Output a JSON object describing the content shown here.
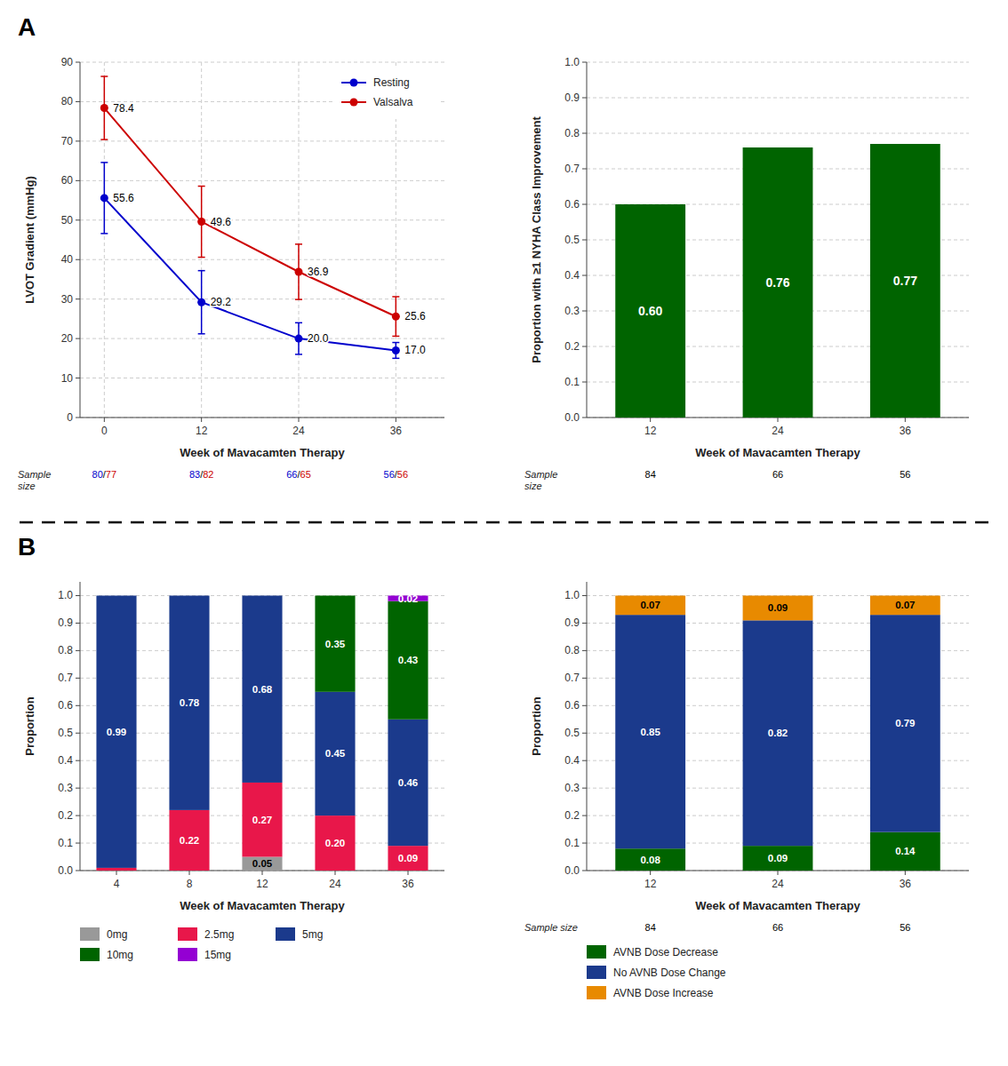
{
  "chart_data": [
    {
      "type": "line",
      "panel_label": "A",
      "xlabel": "Week of Mavacamten Therapy",
      "ylabel": "LVOT Gradient (mmHg)",
      "x": [
        0,
        12,
        24,
        36
      ],
      "xlim": [
        -3,
        42
      ],
      "xticks": [
        0,
        12,
        24,
        36
      ],
      "ylim": [
        0,
        90
      ],
      "yticks": [
        0,
        10,
        20,
        30,
        40,
        50,
        60,
        70,
        80,
        90
      ],
      "grid": true,
      "legend": "upper right",
      "data_labels": true,
      "marker": "circle",
      "sample_size_label": "Sample\nsize",
      "sample_size_separator": "/",
      "series": [
        {
          "name": "Resting",
          "color": "#0000CC",
          "values": [
            55.6,
            29.2,
            20.0,
            17.0
          ],
          "value_labels": [
            "55.6",
            "29.2",
            "20.0",
            "17.0"
          ],
          "error_low": [
            9.0,
            8.0,
            4.0,
            2.0
          ],
          "error_high": [
            9.0,
            8.0,
            4.0,
            2.0
          ],
          "sample_sizes": [
            80,
            83,
            66,
            56
          ]
        },
        {
          "name": "Valsalva",
          "color": "#CC0000",
          "values": [
            78.4,
            49.6,
            36.9,
            25.6
          ],
          "value_labels": [
            "78.4",
            "49.6",
            "36.9",
            "25.6"
          ],
          "error_low": [
            8.0,
            9.0,
            7.0,
            5.0
          ],
          "error_high": [
            8.0,
            9.0,
            7.0,
            5.0
          ],
          "sample_sizes": [
            77,
            82,
            65,
            56
          ]
        }
      ]
    },
    {
      "type": "bar",
      "xlabel": "Week of Mavacamten Therapy",
      "ylabel": "Proportion with ≥1 NYHA Class Improvement",
      "categories": [
        "12",
        "24",
        "36"
      ],
      "values": [
        0.6,
        0.76,
        0.77
      ],
      "value_labels": [
        "0.60",
        "0.76",
        "0.77"
      ],
      "color": "#006400",
      "ylim": [
        0,
        1
      ],
      "yticks": [
        {
          "value": 0,
          "label": "0.0"
        },
        0.1,
        0.2,
        0.3,
        0.4,
        0.5,
        0.6,
        0.7,
        0.8,
        0.9,
        {
          "value": 1,
          "label": "1.0"
        }
      ],
      "grid": "y",
      "data_labels": true,
      "sample_size_label": "Sample\nsize",
      "sample_sizes": [
        84,
        66,
        56
      ]
    },
    {
      "type": "bar",
      "stacked": true,
      "panel_label": "B",
      "xlabel": "Week of Mavacamten Therapy",
      "ylabel": "Proportion",
      "categories": [
        "4",
        "8",
        "12",
        "24",
        "36"
      ],
      "ylim": [
        0,
        1.05
      ],
      "yticks": [
        {
          "value": 0,
          "label": "0.0"
        },
        0.1,
        0.2,
        0.3,
        0.4,
        0.5,
        0.6,
        0.7,
        0.8,
        0.9,
        {
          "value": 1,
          "label": "1.0"
        }
      ],
      "grid": "y",
      "legend": "below",
      "data_labels": true,
      "series": [
        {
          "name": "0mg",
          "color": "#999999",
          "values": [
            0.0,
            0.0,
            0.05,
            0.0,
            0.0
          ],
          "value_labels": [
            null,
            null,
            "0.05",
            null,
            null
          ]
        },
        {
          "name": "2.5mg",
          "color": "#E8174A",
          "values": [
            0.01,
            0.22,
            0.27,
            0.2,
            0.09
          ],
          "value_labels": [
            null,
            "0.22",
            "0.27",
            "0.20",
            "0.09"
          ]
        },
        {
          "name": "5mg",
          "color": "#1B3A8C",
          "values": [
            0.99,
            0.78,
            0.68,
            0.45,
            0.46
          ],
          "value_labels": [
            "0.99",
            "0.78",
            "0.68",
            "0.45",
            "0.46"
          ]
        },
        {
          "name": "10mg",
          "color": "#006400",
          "values": [
            0.0,
            0.0,
            0.0,
            0.35,
            0.43
          ],
          "value_labels": [
            null,
            null,
            null,
            "0.35",
            "0.43"
          ]
        },
        {
          "name": "15mg",
          "color": "#9400D3",
          "values": [
            0.0,
            0.0,
            0.0,
            0.0,
            0.02
          ],
          "value_labels": [
            null,
            null,
            null,
            null,
            "0.02"
          ]
        }
      ]
    },
    {
      "type": "bar",
      "stacked": true,
      "xlabel": "Week of Mavacamten Therapy",
      "ylabel": "Proportion",
      "categories": [
        "12",
        "24",
        "36"
      ],
      "ylim": [
        0,
        1.05
      ],
      "yticks": [
        {
          "value": 0,
          "label": "0.0"
        },
        0.1,
        0.2,
        0.3,
        0.4,
        0.5,
        0.6,
        0.7,
        0.8,
        0.9,
        {
          "value": 1,
          "label": "1.0"
        }
      ],
      "grid": "y",
      "legend": "below",
      "data_labels": true,
      "sample_size_label": "Sample size",
      "sample_sizes": [
        84,
        66,
        56
      ],
      "series": [
        {
          "name": "AVNB Dose Decrease",
          "color": "#006400",
          "values": [
            0.08,
            0.09,
            0.14
          ],
          "value_labels": [
            "0.08",
            "0.09",
            "0.14"
          ]
        },
        {
          "name": "No AVNB Dose Change",
          "color": "#1B3A8C",
          "values": [
            0.85,
            0.82,
            0.79
          ],
          "value_labels": [
            "0.85",
            "0.82",
            "0.79"
          ]
        },
        {
          "name": "AVNB Dose Increase",
          "color": "#E88A00",
          "values": [
            0.07,
            0.09,
            0.07
          ],
          "value_labels": [
            "0.07",
            "0.09",
            "0.07"
          ]
        }
      ]
    }
  ]
}
